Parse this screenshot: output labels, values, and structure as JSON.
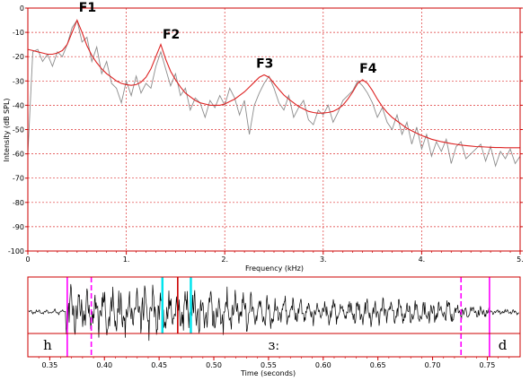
{
  "chart_data": [
    {
      "type": "line",
      "xlabel": "Frequency (kHz)",
      "ylabel": "Intensity (dB SPL)",
      "xlim": [
        0,
        5
      ],
      "ylim": [
        -100,
        0
      ],
      "x_ticks": [
        "0",
        "1.",
        "2.",
        "3.",
        "4.",
        "5."
      ],
      "y_ticks": [
        "0",
        "-10",
        "-20",
        "-30",
        "-40",
        "-50",
        "-60",
        "-70",
        "-80",
        "-90",
        "-100"
      ],
      "grid": true,
      "series": [
        {
          "color": "#8c8c8c",
          "x": [
            0.0,
            0.05,
            0.1,
            0.15,
            0.2,
            0.25,
            0.3,
            0.35,
            0.4,
            0.45,
            0.5,
            0.55,
            0.6,
            0.65,
            0.7,
            0.75,
            0.8,
            0.85,
            0.9,
            0.95,
            1.0,
            1.05,
            1.1,
            1.15,
            1.2,
            1.25,
            1.3,
            1.35,
            1.4,
            1.45,
            1.5,
            1.55,
            1.6,
            1.65,
            1.7,
            1.75,
            1.8,
            1.85,
            1.9,
            1.95,
            2.0,
            2.05,
            2.1,
            2.15,
            2.2,
            2.25,
            2.3,
            2.35,
            2.4,
            2.45,
            2.5,
            2.55,
            2.6,
            2.65,
            2.7,
            2.75,
            2.8,
            2.85,
            2.9,
            2.95,
            3.0,
            3.05,
            3.1,
            3.15,
            3.2,
            3.25,
            3.3,
            3.35,
            3.4,
            3.45,
            3.5,
            3.55,
            3.6,
            3.65,
            3.7,
            3.75,
            3.8,
            3.85,
            3.9,
            3.95,
            4.0,
            4.05,
            4.1,
            4.15,
            4.2,
            4.25,
            4.3,
            4.35,
            4.4,
            4.45,
            4.5,
            4.55,
            4.6,
            4.65,
            4.7,
            4.75,
            4.8,
            4.85,
            4.9,
            4.95,
            5.0
          ],
          "y": [
            -60,
            -18,
            -17,
            -22,
            -19,
            -24,
            -18,
            -20,
            -15,
            -8,
            -5,
            -14,
            -12,
            -22,
            -16,
            -27,
            -22,
            -31,
            -33,
            -39,
            -30,
            -36,
            -28,
            -35,
            -31,
            -33,
            -24,
            -18,
            -25,
            -32,
            -27,
            -36,
            -33,
            -42,
            -37,
            -39,
            -45,
            -38,
            -41,
            -36,
            -40,
            -33,
            -37,
            -44,
            -38,
            -52,
            -40,
            -35,
            -31,
            -28,
            -33,
            -39,
            -42,
            -36,
            -45,
            -41,
            -38,
            -46,
            -48,
            -42,
            -44,
            -40,
            -47,
            -43,
            -38,
            -36,
            -34,
            -30,
            -32,
            -35,
            -39,
            -45,
            -41,
            -47,
            -50,
            -44,
            -52,
            -47,
            -56,
            -49,
            -58,
            -52,
            -61,
            -55,
            -59,
            -54,
            -64,
            -57,
            -55,
            -62,
            -60,
            -58,
            -56,
            -63,
            -57,
            -65,
            -59,
            -62,
            -58,
            -64,
            -61
          ]
        },
        {
          "color": "#dd2222",
          "x": [
            0.0,
            0.05,
            0.1,
            0.15,
            0.2,
            0.25,
            0.3,
            0.35,
            0.4,
            0.45,
            0.5,
            0.55,
            0.6,
            0.65,
            0.7,
            0.75,
            0.8,
            0.85,
            0.9,
            0.95,
            1.0,
            1.05,
            1.1,
            1.15,
            1.2,
            1.25,
            1.3,
            1.35,
            1.4,
            1.45,
            1.5,
            1.55,
            1.6,
            1.65,
            1.7,
            1.75,
            1.8,
            1.85,
            1.9,
            1.95,
            2.0,
            2.05,
            2.1,
            2.15,
            2.2,
            2.25,
            2.3,
            2.35,
            2.4,
            2.45,
            2.5,
            2.55,
            2.6,
            2.65,
            2.7,
            2.75,
            2.8,
            2.85,
            2.9,
            2.95,
            3.0,
            3.05,
            3.1,
            3.15,
            3.2,
            3.25,
            3.3,
            3.35,
            3.4,
            3.45,
            3.5,
            3.55,
            3.6,
            3.65,
            3.7,
            3.75,
            3.8,
            3.85,
            3.9,
            3.95,
            4.0,
            4.05,
            4.1,
            4.15,
            4.2,
            4.25,
            4.3,
            4.35,
            4.4,
            4.45,
            4.5,
            4.55,
            4.6,
            4.65,
            4.7,
            4.75,
            4.8,
            4.85,
            4.9,
            4.95,
            5.0
          ],
          "y": [
            -17,
            -17.5,
            -18,
            -18.5,
            -19,
            -19,
            -18.5,
            -17.5,
            -15,
            -10,
            -5,
            -10,
            -15.5,
            -19.5,
            -22.5,
            -25,
            -27,
            -28.5,
            -30,
            -31,
            -31.5,
            -31.8,
            -31.5,
            -30.5,
            -28.5,
            -25,
            -20,
            -15,
            -21,
            -26,
            -29.5,
            -32.5,
            -35,
            -36.5,
            -38,
            -39,
            -39.5,
            -40,
            -40,
            -40,
            -39.5,
            -38.5,
            -37.5,
            -36,
            -34.5,
            -32.5,
            -30.5,
            -28.5,
            -27.5,
            -28.5,
            -31,
            -33.5,
            -35.8,
            -37.5,
            -39,
            -40.5,
            -41.5,
            -42.5,
            -43,
            -43.3,
            -43.2,
            -43,
            -42.5,
            -41.5,
            -40,
            -37.5,
            -34.5,
            -31,
            -29.5,
            -31,
            -34,
            -37.5,
            -40.5,
            -43,
            -45,
            -46.5,
            -48,
            -49.5,
            -50.5,
            -51.5,
            -52.5,
            -53.2,
            -54,
            -54.5,
            -55,
            -55.4,
            -55.8,
            -56.1,
            -56.4,
            -56.6,
            -56.8,
            -57,
            -57.1,
            -57.2,
            -57.3,
            -57.4,
            -57.4,
            -57.5,
            -57.5,
            -57.5,
            -57.5
          ]
        }
      ],
      "annotations": [
        {
          "text": "F1",
          "x": 0.5,
          "y": -3
        },
        {
          "text": "F2",
          "x": 1.35,
          "y": -14
        },
        {
          "text": "F3",
          "x": 2.3,
          "y": -26
        },
        {
          "text": "F4",
          "x": 3.35,
          "y": -28
        }
      ]
    },
    {
      "type": "line",
      "xlabel": "Time (seconds)",
      "xlim": [
        0.33,
        0.78
      ],
      "x_ticks": [
        "0.35",
        "0.40",
        "0.45",
        "0.50",
        "0.55",
        "0.60",
        "0.65",
        "0.70",
        "0.75"
      ],
      "x_tick_values": [
        0.35,
        0.4,
        0.45,
        0.5,
        0.55,
        0.6,
        0.65,
        0.7,
        0.75
      ],
      "waveform": {
        "start": 0.33,
        "end": 0.78,
        "voicing_start": 0.366,
        "voicing_end": 0.752
      },
      "markers": [
        {
          "t": 0.366,
          "color": "#ff00ff",
          "style": "solid"
        },
        {
          "t": 0.388,
          "color": "#ff00ff",
          "style": "dashed"
        },
        {
          "t": 0.453,
          "color": "#00e5ee",
          "style": "solid"
        },
        {
          "t": 0.467,
          "color": "#cc0000",
          "style": "solid"
        },
        {
          "t": 0.479,
          "color": "#00e5ee",
          "style": "solid"
        },
        {
          "t": 0.726,
          "color": "#ff00ff",
          "style": "dashed"
        },
        {
          "t": 0.752,
          "color": "#ff00ff",
          "style": "solid"
        }
      ],
      "segments": [
        {
          "label": "h",
          "t": 0.348
        },
        {
          "label": "ɜː",
          "t": 0.555
        },
        {
          "label": "d",
          "t": 0.764
        }
      ]
    }
  ]
}
